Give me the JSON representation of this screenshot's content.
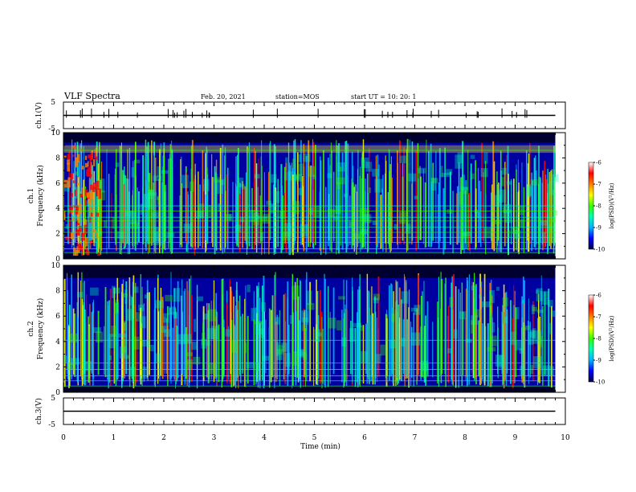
{
  "header": {
    "title": "VLF Spectra",
    "date": "Feb. 20, 2021",
    "station": "station=MOS",
    "start": "start  UT =   10: 20: 1"
  },
  "chart_data": [
    {
      "type": "line",
      "panel": "ch1-voltage",
      "ylabel": "ch.1(V)",
      "ylim": [
        -5,
        5
      ],
      "yticks": [
        5,
        -5
      ],
      "x": [
        0,
        9.8
      ],
      "y": [
        0,
        0
      ]
    },
    {
      "type": "heatmap",
      "panel": "ch1-spectrogram",
      "ylabel_line1": "ch.1",
      "ylabel_line2": "Frequency (kHz)",
      "ylim": [
        0,
        10
      ],
      "yticks": [
        0,
        2,
        4,
        6,
        8,
        10
      ],
      "xlim": [
        0,
        10
      ],
      "data_extent_x": [
        0,
        9.8
      ],
      "colorbar": {
        "label": "log(PSD)(V²/Hz)",
        "range": [
          -10,
          -6
        ],
        "ticks": [
          "-6",
          "-7",
          "-8",
          "-9",
          "-10"
        ]
      }
    },
    {
      "type": "heatmap",
      "panel": "ch2-spectrogram",
      "ylabel_line1": "ch.2",
      "ylabel_line2": "Frequency (kHz)",
      "ylim": [
        0,
        10
      ],
      "yticks": [
        0,
        2,
        4,
        6,
        8,
        10
      ],
      "xlim": [
        0,
        10
      ],
      "data_extent_x": [
        0,
        9.8
      ],
      "colorbar": {
        "label": "log(PSD)(V²/Hz)",
        "range": [
          -10,
          -6
        ],
        "ticks": [
          "-6",
          "-7",
          "-8",
          "-9",
          "-10"
        ]
      }
    },
    {
      "type": "line",
      "panel": "ch3-voltage",
      "ylabel": "ch.3(V)",
      "ylim": [
        -5,
        5
      ],
      "yticks": [
        5,
        -5
      ],
      "x": [
        0,
        9.8
      ],
      "y": [
        0,
        0
      ]
    }
  ],
  "xaxis": {
    "label": "Time (min)",
    "ticks": [
      "0",
      "1",
      "2",
      "3",
      "4",
      "5",
      "6",
      "7",
      "8",
      "9",
      "10"
    ],
    "range": [
      0,
      10
    ]
  },
  "colors": {
    "spectrogram_background": "#000030",
    "colormap": [
      "#00004a",
      "#0000ff",
      "#00b4ff",
      "#00ffb4",
      "#34ff00",
      "#ffff00",
      "#ff8000",
      "#ff0000",
      "#ffffff"
    ]
  }
}
